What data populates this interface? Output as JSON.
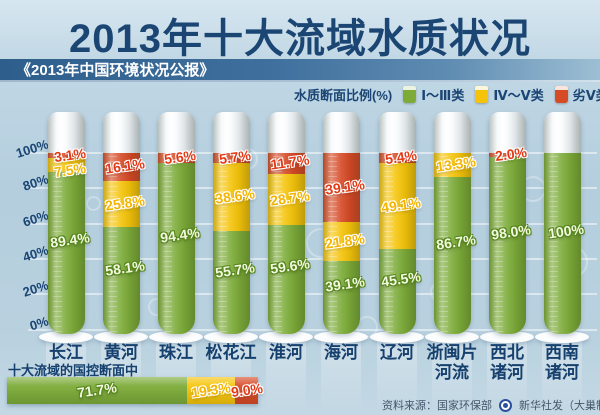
{
  "title": "2013年十大流域水质状况",
  "subtitle": "《2013年中国环境状况公报》",
  "legend": {
    "title": "水质断面比例(%)",
    "items": [
      {
        "label": "Ⅰ～Ⅲ类",
        "key": "good",
        "color": "#7cab38"
      },
      {
        "label": "Ⅳ～Ⅴ类",
        "key": "mid",
        "color": "#f5c40a"
      },
      {
        "label": "劣Ⅴ类",
        "key": "bad",
        "color": "#d64a26"
      }
    ]
  },
  "colors": {
    "good": "#7cab38",
    "mid": "#f5c40a",
    "bad": "#d64a26",
    "navy": "#1a4574"
  },
  "chart_data": {
    "type": "bar",
    "stacked": true,
    "orientation": "vertical",
    "unit": "%",
    "title": "2013年十大流域水质状况",
    "ylabel": "水质断面比例(%)",
    "ylim": [
      0,
      100
    ],
    "y_ticks": [
      "100%",
      "80%",
      "60%",
      "40%",
      "20%",
      "0%"
    ],
    "grid": true,
    "legend_position": "top-right",
    "categories": [
      "长江",
      "黄河",
      "珠江",
      "松花江",
      "淮河",
      "海河",
      "辽河",
      "浙闽片河流",
      "西北诸河",
      "西南诸河"
    ],
    "category_label_lines": [
      [
        "长江"
      ],
      [
        "黄河"
      ],
      [
        "珠江"
      ],
      [
        "松花江"
      ],
      [
        "淮河"
      ],
      [
        "海河"
      ],
      [
        "辽河"
      ],
      [
        "浙闽片",
        "河流"
      ],
      [
        "西北",
        "诸河"
      ],
      [
        "西南",
        "诸河"
      ]
    ],
    "series": [
      {
        "name": "Ⅰ～Ⅲ类",
        "key": "good",
        "color": "#7cab38",
        "values": [
          89.4,
          58.1,
          94.4,
          55.7,
          59.6,
          39.1,
          45.5,
          86.7,
          98.0,
          100
        ],
        "labels": [
          "89.4%",
          "58.1%",
          "94.4%",
          "55.7%",
          "59.6%",
          "39.1%",
          "45.5%",
          "86.7%",
          "98.0%",
          "100%"
        ]
      },
      {
        "name": "Ⅳ～Ⅴ类",
        "key": "mid",
        "color": "#f5c40a",
        "values": [
          7.5,
          25.8,
          null,
          38.6,
          28.7,
          21.8,
          49.1,
          13.3,
          null,
          null
        ],
        "labels": [
          "7.5%",
          "25.8%",
          null,
          "38.6%",
          "28.7%",
          "21.8%",
          "49.1%",
          "13.3%",
          null,
          null
        ]
      },
      {
        "name": "劣Ⅴ类",
        "key": "bad",
        "color": "#d64a26",
        "values": [
          3.1,
          16.1,
          5.6,
          5.7,
          11.7,
          39.1,
          5.4,
          null,
          2.0,
          null
        ],
        "labels": [
          "3.1%",
          "16.1%",
          "5.6%",
          "5.7%",
          "11.7%",
          "39.1%",
          "5.4%",
          null,
          "2.0%",
          null
        ]
      }
    ]
  },
  "summary": {
    "heading": "十大流域的国控断面中",
    "segments": [
      {
        "key": "good",
        "label": "71.7%",
        "value": 71.7
      },
      {
        "key": "mid",
        "label": "19.3%",
        "value": 19.3
      },
      {
        "key": "bad",
        "label": "9.0%",
        "value": 9.0
      }
    ]
  },
  "footer": {
    "source": "资料来源：国家环保部",
    "credit": "新华社发（大巢制图）",
    "logo": "xinhua-logo"
  }
}
